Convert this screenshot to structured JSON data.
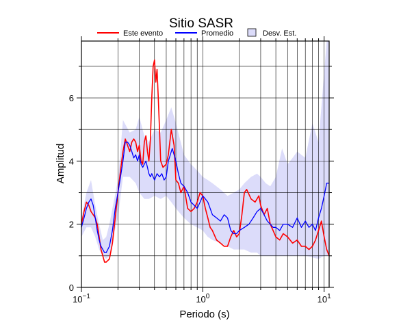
{
  "chart_data": {
    "type": "line",
    "title": "Sitio SASR",
    "xlabel": "Periodo (s)",
    "ylabel": "Amplitud",
    "xscale": "log",
    "xlim": [
      0.1,
      11
    ],
    "ylim": [
      0,
      7.8
    ],
    "grid": true,
    "legend_placement": "top",
    "x_ticks": [
      {
        "value": 0.1,
        "base": "10",
        "exp": "−1"
      },
      {
        "value": 1,
        "base": "10",
        "exp": "0"
      },
      {
        "value": 10,
        "base": "10",
        "exp": "1"
      }
    ],
    "y_ticks": [
      {
        "value": 0,
        "label": "0"
      },
      {
        "value": 2,
        "label": "2"
      },
      {
        "value": 4,
        "label": "4"
      },
      {
        "value": 6,
        "label": "6"
      }
    ],
    "legend": [
      {
        "label": "Este evento",
        "kind": "line",
        "color": "#ff0000"
      },
      {
        "label": "Promedio",
        "kind": "line",
        "color": "#0000ff"
      },
      {
        "label": "Desv. Est.",
        "kind": "box",
        "color": "#dcdcfa"
      }
    ],
    "band": {
      "name": "Desv. Est.",
      "color": "#dcdcfa",
      "x": [
        0.1,
        0.11,
        0.12,
        0.13,
        0.14,
        0.15,
        0.16,
        0.17,
        0.18,
        0.2,
        0.22,
        0.25,
        0.28,
        0.3,
        0.33,
        0.36,
        0.4,
        0.45,
        0.5,
        0.55,
        0.6,
        0.7,
        0.8,
        0.9,
        1.0,
        1.1,
        1.2,
        1.4,
        1.6,
        1.8,
        2.0,
        2.2,
        2.5,
        2.8,
        3.0,
        3.3,
        3.6,
        4.0,
        4.5,
        5.0,
        5.5,
        6.0,
        7.0,
        8.0,
        9.0,
        10.0,
        10.5,
        11.0
      ],
      "upper": [
        2.2,
        3.0,
        3.4,
        2.6,
        2.0,
        1.5,
        1.6,
        2.0,
        2.5,
        3.4,
        5.3,
        4.9,
        5.0,
        5.4,
        4.8,
        4.6,
        5.0,
        4.9,
        5.3,
        5.7,
        5.2,
        4.2,
        3.9,
        3.7,
        3.5,
        3.4,
        3.3,
        3.1,
        2.9,
        3.0,
        3.1,
        3.3,
        3.5,
        3.6,
        3.5,
        3.3,
        3.2,
        3.5,
        4.4,
        3.9,
        4.1,
        4.3,
        4.1,
        5.2,
        4.6,
        6.8,
        7.8,
        7.8
      ],
      "lower": [
        1.6,
        1.9,
        1.9,
        1.6,
        1.2,
        1.0,
        0.9,
        1.0,
        1.5,
        2.2,
        3.5,
        3.5,
        3.3,
        3.0,
        2.8,
        2.8,
        2.9,
        2.8,
        2.9,
        2.7,
        2.5,
        2.2,
        2.0,
        1.9,
        1.8,
        1.6,
        1.5,
        1.4,
        1.3,
        1.2,
        1.2,
        1.2,
        1.1,
        1.1,
        1.0,
        1.0,
        1.0,
        1.0,
        1.0,
        1.0,
        1.0,
        1.0,
        1.0,
        0.95,
        0.9,
        1.0,
        1.0,
        1.0
      ]
    },
    "series": [
      {
        "name": "Este evento",
        "color": "#ff0000",
        "x": [
          0.1,
          0.105,
          0.11,
          0.115,
          0.12,
          0.125,
          0.13,
          0.135,
          0.14,
          0.145,
          0.15,
          0.155,
          0.16,
          0.17,
          0.18,
          0.19,
          0.2,
          0.21,
          0.22,
          0.23,
          0.24,
          0.25,
          0.26,
          0.27,
          0.28,
          0.29,
          0.3,
          0.31,
          0.32,
          0.33,
          0.34,
          0.35,
          0.36,
          0.37,
          0.38,
          0.39,
          0.4,
          0.41,
          0.42,
          0.43,
          0.44,
          0.45,
          0.47,
          0.5,
          0.52,
          0.55,
          0.58,
          0.6,
          0.63,
          0.66,
          0.7,
          0.75,
          0.8,
          0.85,
          0.9,
          0.95,
          1.0,
          1.05,
          1.1,
          1.15,
          1.2,
          1.3,
          1.4,
          1.5,
          1.6,
          1.7,
          1.8,
          1.9,
          2.0,
          2.1,
          2.2,
          2.3,
          2.5,
          2.7,
          2.9,
          3.0,
          3.2,
          3.4,
          3.6,
          3.8,
          4.0,
          4.3,
          4.6,
          5.0,
          5.5,
          6.0,
          6.5,
          7.0,
          7.5,
          8.0,
          8.5,
          9.0,
          9.5,
          10.0,
          10.5,
          11.0
        ],
        "y": [
          2.0,
          2.4,
          2.7,
          2.6,
          2.4,
          2.3,
          2.2,
          2.0,
          1.6,
          1.2,
          1.0,
          0.8,
          0.8,
          0.9,
          1.4,
          2.2,
          3.0,
          3.7,
          4.3,
          4.7,
          4.5,
          4.3,
          4.6,
          4.7,
          4.6,
          4.3,
          4.5,
          4.0,
          3.9,
          4.6,
          4.8,
          4.3,
          4.0,
          4.7,
          6.0,
          7.0,
          7.2,
          6.5,
          6.9,
          6.0,
          5.0,
          4.0,
          3.8,
          3.9,
          4.2,
          5.0,
          4.5,
          3.4,
          3.3,
          3.0,
          3.2,
          2.5,
          2.4,
          2.5,
          2.7,
          3.0,
          2.9,
          2.5,
          2.2,
          1.9,
          1.8,
          1.5,
          1.4,
          1.3,
          1.3,
          1.6,
          1.8,
          1.6,
          1.7,
          2.3,
          3.0,
          3.1,
          2.8,
          2.7,
          2.9,
          2.6,
          2.3,
          2.5,
          2.0,
          1.8,
          1.6,
          1.5,
          1.7,
          1.6,
          1.4,
          1.5,
          1.3,
          1.3,
          1.2,
          1.3,
          1.5,
          1.8,
          2.1,
          1.6,
          1.2,
          1.0
        ]
      },
      {
        "name": "Promedio",
        "color": "#0000ff",
        "x": [
          0.1,
          0.105,
          0.11,
          0.115,
          0.12,
          0.125,
          0.13,
          0.135,
          0.14,
          0.145,
          0.15,
          0.155,
          0.16,
          0.17,
          0.18,
          0.19,
          0.2,
          0.21,
          0.22,
          0.23,
          0.24,
          0.25,
          0.26,
          0.27,
          0.28,
          0.29,
          0.3,
          0.31,
          0.32,
          0.33,
          0.34,
          0.35,
          0.36,
          0.37,
          0.38,
          0.39,
          0.4,
          0.42,
          0.44,
          0.46,
          0.48,
          0.5,
          0.52,
          0.54,
          0.56,
          0.58,
          0.6,
          0.63,
          0.66,
          0.7,
          0.75,
          0.8,
          0.85,
          0.9,
          0.95,
          1.0,
          1.05,
          1.1,
          1.15,
          1.2,
          1.3,
          1.4,
          1.5,
          1.6,
          1.7,
          1.8,
          1.9,
          2.0,
          2.2,
          2.4,
          2.6,
          2.8,
          3.0,
          3.2,
          3.4,
          3.6,
          3.8,
          4.0,
          4.3,
          4.6,
          5.0,
          5.5,
          6.0,
          6.5,
          7.0,
          7.5,
          8.0,
          8.5,
          9.0,
          9.5,
          10.0,
          10.5,
          11.0
        ],
        "y": [
          1.9,
          2.2,
          2.5,
          2.7,
          2.8,
          2.6,
          2.2,
          1.8,
          1.5,
          1.3,
          1.2,
          1.1,
          1.1,
          1.3,
          1.8,
          2.5,
          3.0,
          3.5,
          4.0,
          4.6,
          4.6,
          4.5,
          4.3,
          4.1,
          4.2,
          4.0,
          4.2,
          3.9,
          3.8,
          3.9,
          4.0,
          3.8,
          3.6,
          3.5,
          3.6,
          3.5,
          3.4,
          3.6,
          3.5,
          3.6,
          3.4,
          3.5,
          4.0,
          4.2,
          4.4,
          4.2,
          4.0,
          3.6,
          3.3,
          3.2,
          3.0,
          2.7,
          2.6,
          2.5,
          2.7,
          2.9,
          2.8,
          2.7,
          2.5,
          2.3,
          2.2,
          2.1,
          2.3,
          2.2,
          1.8,
          1.7,
          1.7,
          1.8,
          1.9,
          2.0,
          2.2,
          2.4,
          2.5,
          2.3,
          2.1,
          2.0,
          1.9,
          1.9,
          1.8,
          2.0,
          2.0,
          1.9,
          2.2,
          1.9,
          2.1,
          1.9,
          2.0,
          1.8,
          2.2,
          2.5,
          2.9,
          3.3,
          3.3
        ]
      }
    ]
  }
}
